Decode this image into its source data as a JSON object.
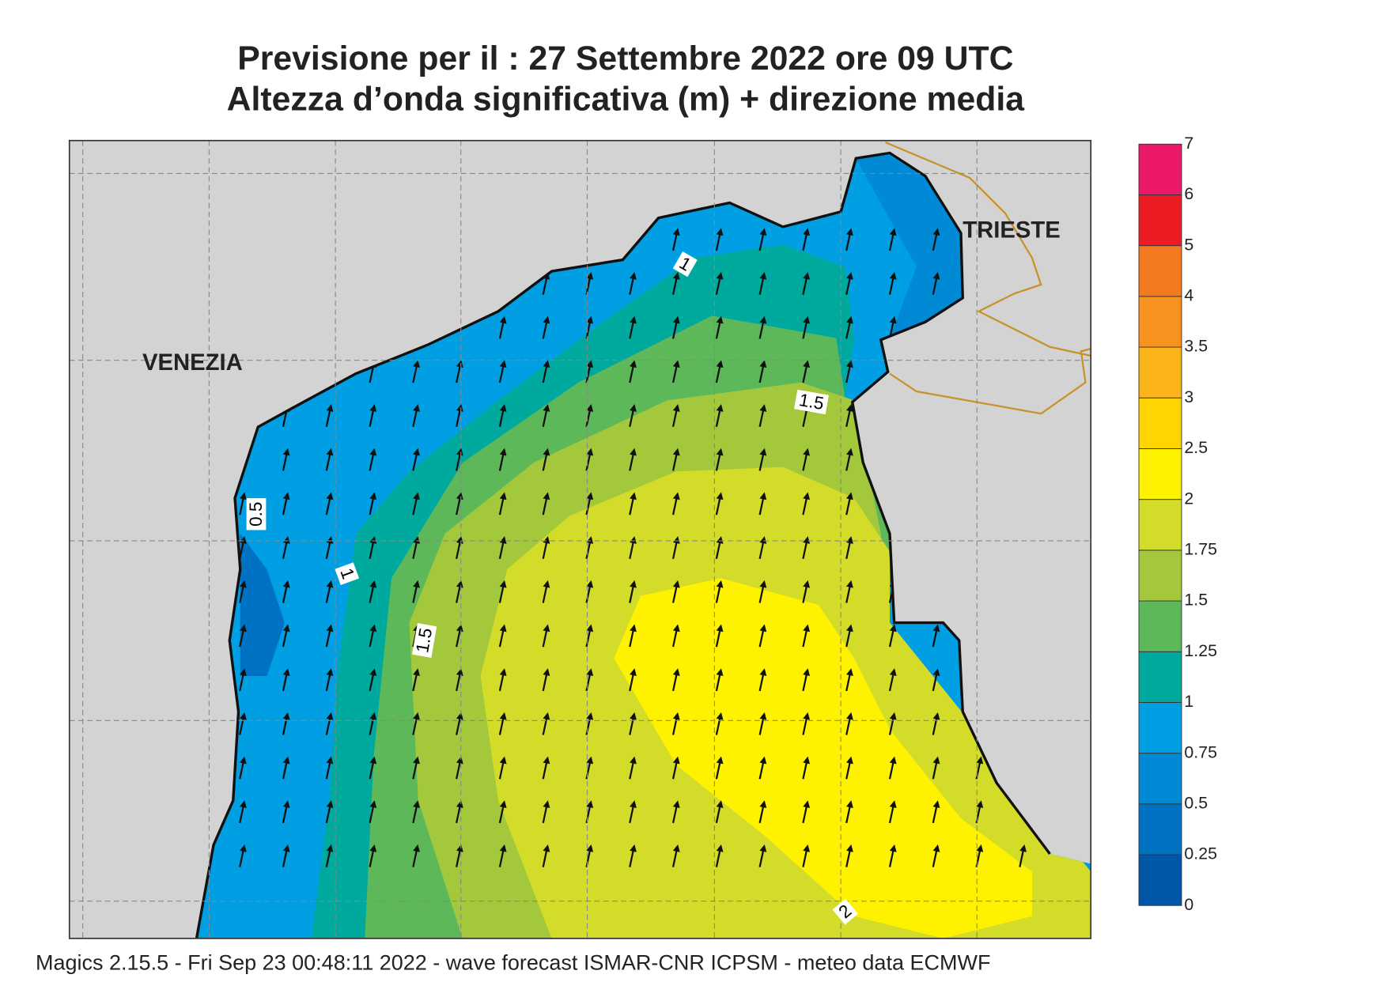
{
  "header": {
    "title_line1": "Previsione per il  :  27 Settembre 2022   ore 09 UTC",
    "title_line2": "Altezza d’onda significativa (m) + direzione media"
  },
  "places": [
    "VENEZIA",
    "TRIESTE"
  ],
  "contour_labels": [
    "1",
    "1.5",
    "0.5",
    "1",
    "1.5",
    "2"
  ],
  "colorbar": {
    "labels": [
      "0",
      "0.25",
      "0.5",
      "0.75",
      "1",
      "1.25",
      "1.5",
      "1.75",
      "2",
      "2.5",
      "3",
      "3.5",
      "4",
      "5",
      "6",
      "7"
    ],
    "colors": [
      "#0057a8",
      "#0072c4",
      "#008ad6",
      "#009fe3",
      "#00a99d",
      "#5db85a",
      "#a3c83b",
      "#d3dc28",
      "#fff200",
      "#ffd400",
      "#fbb41a",
      "#f7931e",
      "#f47a20",
      "#ed1c24",
      "#ec1869"
    ]
  },
  "footer": "Magics 2.15.5 - Fri Sep 23 00:48:11 2022 - wave forecast  ISMAR-CNR  ICPSM - meteo data    ECMWF"
}
